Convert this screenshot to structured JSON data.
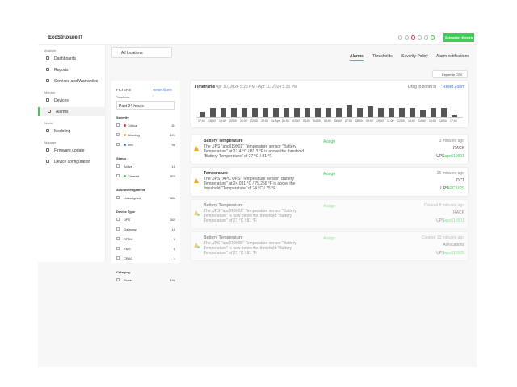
{
  "header": {
    "logo": "EcoStruxure IT",
    "brand_button": "Schneider Electric"
  },
  "sidebar": {
    "groups": [
      {
        "label": "Analyze",
        "items": [
          "Dashboards",
          "Reports",
          "Services and Warranties"
        ]
      },
      {
        "label": "Monitor",
        "items": [
          "Devices",
          "Alarms"
        ]
      },
      {
        "label": "Model",
        "items": [
          "Modeling"
        ]
      },
      {
        "label": "Manage",
        "items": [
          "Firmware update",
          "Device configuration"
        ]
      }
    ],
    "active": "Alarms"
  },
  "location_selector": "All locations",
  "tabs": [
    "Alarms",
    "Thresholds",
    "Severity Policy",
    "Alarm notifications"
  ],
  "export_button": "Export to CSV",
  "filters": {
    "title": "FILTERS",
    "reset": "Reset filters",
    "timeframe_label": "Timeframe",
    "timeframe_value": "Past 24 hours",
    "sections": [
      {
        "title": "Severity",
        "options": [
          {
            "label": "Critical",
            "count": 81
          },
          {
            "label": "Warning",
            "count": 191
          },
          {
            "label": "Info",
            "count": 94
          }
        ]
      },
      {
        "title": "Status",
        "options": [
          {
            "label": "Active",
            "count": 14
          },
          {
            "label": "Cleared",
            "count": 352
          }
        ]
      },
      {
        "title": "Acknowledgement",
        "options": [
          {
            "label": "Unassigned",
            "count": 366
          }
        ]
      },
      {
        "title": "Device Type",
        "options": [
          {
            "label": "UPS",
            "count": 342
          },
          {
            "label": "Gateway",
            "count": 14
          },
          {
            "label": "RPDU",
            "count": 5
          },
          {
            "label": "EMS",
            "count": 4
          },
          {
            "label": "CRAC",
            "count": 1
          }
        ]
      },
      {
        "title": "Category",
        "options": [
          {
            "label": "Power",
            "count": 146
          }
        ]
      }
    ]
  },
  "timeline": {
    "title": "Timeframe",
    "range": "Apr 10, 2024 5:25 PM - Apr 11, 2024 5:25 PM",
    "hint": "Drag to zoom in",
    "reset": "Reset Zoom",
    "histogram": {
      "categories": [
        "17:00",
        "18:00",
        "19:00",
        "20:00",
        "21:00",
        "22:00",
        "23:00",
        "11 Apr",
        "01:00",
        "02:00",
        "03:00",
        "04:00",
        "05:00",
        "06:00",
        "07:00",
        "08:00",
        "09:00",
        "10:00",
        "11:00",
        "12:00",
        "13:00",
        "14:00",
        "15:00",
        "16:00",
        "17:00"
      ],
      "values": [
        3,
        5,
        5,
        5,
        5,
        5,
        5,
        5,
        5,
        5,
        5,
        5,
        5,
        5,
        7,
        5,
        6,
        5,
        5,
        5,
        5,
        4,
        5,
        5,
        1
      ]
    }
  },
  "alarms": [
    {
      "title": "Battery Temperature",
      "description": "The UPS \"apc619901\" Temperature sensor \"Battery Temperature\" at 27.4 °C / 81.3 °F is above the threshold \"Battery Temperature\" of 27 °C / 81 °F.",
      "assign": "Assign",
      "time": "3 minutes ago",
      "location": "RACK",
      "device_type": "UPS",
      "device_name": "apc619901"
    },
    {
      "title": "Temperature",
      "description": "The UPS \"APC UPS\" Temperature sensor \"Battery Temperature\" at 24.031 °C / 75.256 °F is above the threshold \"Temperature\" of 24 °C / 75 °F.",
      "assign": "Assign",
      "time": "26 minutes ago",
      "location": "DC1",
      "device_type": "UPS",
      "device_name": "APC UPS"
    },
    {
      "title": "Battery Temperature",
      "description": "The UPS \"apc619901\" Temperature sensor \"Battery Temperature\" is now below the threshold \"Battery Temperature\" of 27 °C / 81 °F.",
      "assign": "Assign",
      "time": "Cleared 8 minutes ago",
      "location": "RACK",
      "device_type": "UPS",
      "device_name": "apc619901"
    },
    {
      "title": "Battery Temperature",
      "description": "The UPS \"apc619905\" Temperature sensor \"Battery Temperature\" is now below the threshold \"Battery Temperature\" of 27 °C / 81 °F.",
      "assign": "Assign",
      "time": "Cleared 13 minutes ago",
      "location": "All locations",
      "device_type": "UPS",
      "device_name": "apc619905"
    }
  ]
}
